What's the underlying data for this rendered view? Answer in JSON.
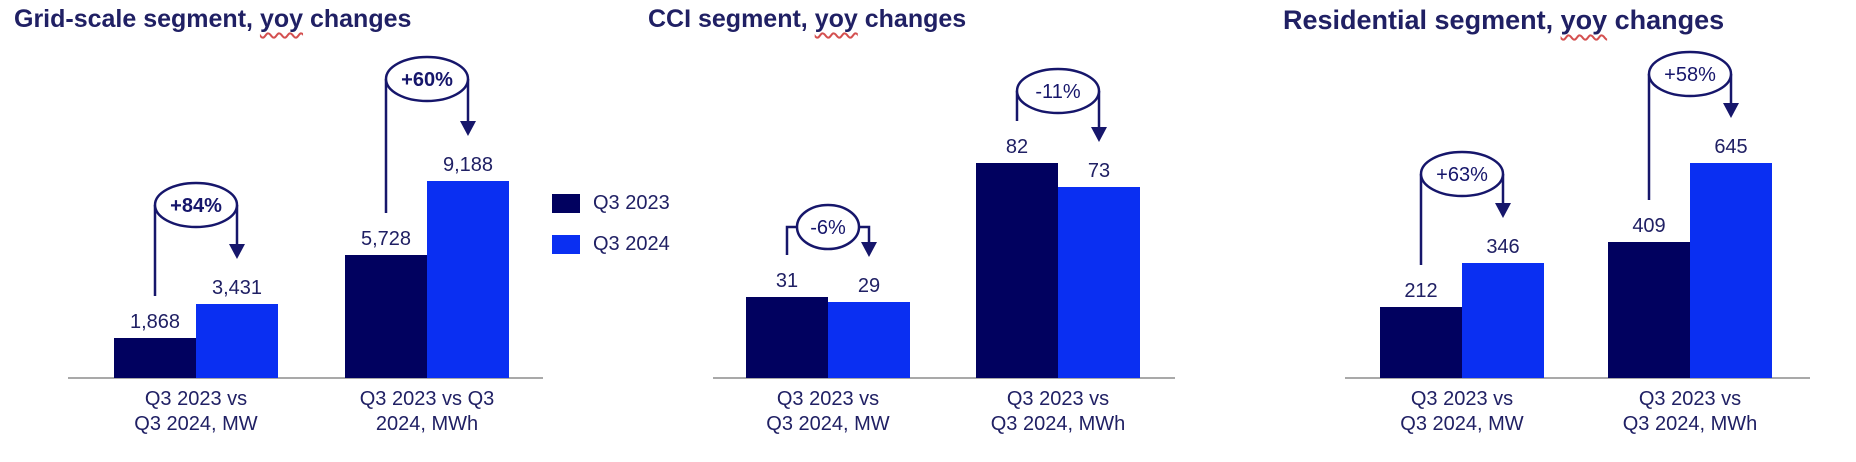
{
  "colors": {
    "series_q3_2023": "#01015f",
    "series_q3_2024": "#0a2ff2",
    "text_navy": "#202064",
    "annotation_navy": "#16166b",
    "axis_gray": "#a9a9a9",
    "spellcheck_red": "#d45050",
    "background": "#ffffff"
  },
  "legend": {
    "items": [
      {
        "label": "Q3 2023",
        "color": "#01015f"
      },
      {
        "label": "Q3 2024",
        "color": "#0a2ff2"
      }
    ]
  },
  "chart_data": [
    {
      "type": "bar",
      "title": "Grid-scale segment, yoy changes",
      "title_parts": {
        "pre": "Grid-scale segment, ",
        "spellchecked_word": "yoy",
        "post": " changes"
      },
      "series_names": [
        "Q3 2023",
        "Q3 2024"
      ],
      "groups": [
        {
          "category": "Q3 2023 vs Q3 2024, MW",
          "category_lines": [
            "Q3 2023 vs",
            "Q3 2024, MW"
          ],
          "values": {
            "q3_2023": 1868,
            "q3_2024": 3431
          },
          "value_labels": [
            "1,868",
            "3,431"
          ],
          "pct_change": "+84%",
          "pct_bold": true
        },
        {
          "category": "Q3 2023 vs Q3 2024, MWh",
          "category_lines": [
            "Q3 2023 vs Q3",
            "2024, MWh"
          ],
          "values": {
            "q3_2023": 5728,
            "q3_2024": 9188
          },
          "value_labels": [
            "5,728",
            "9,188"
          ],
          "pct_change": "+60%",
          "pct_bold": true
        }
      ]
    },
    {
      "type": "bar",
      "title": "CCI segment, yoy changes",
      "title_parts": {
        "pre": "CCI segment, ",
        "spellchecked_word": "yoy",
        "post": " changes"
      },
      "series_names": [
        "Q3 2023",
        "Q3 2024"
      ],
      "groups": [
        {
          "category": "Q3 2023 vs Q3 2024, MW",
          "category_lines": [
            "Q3 2023 vs",
            "Q3 2024, MW"
          ],
          "values": {
            "q3_2023": 31,
            "q3_2024": 29
          },
          "value_labels": [
            "31",
            "29"
          ],
          "pct_change": "-6%",
          "pct_bold": false
        },
        {
          "category": "Q3 2023 vs Q3 2024, MWh",
          "category_lines": [
            "Q3 2023 vs",
            "Q3 2024, MWh"
          ],
          "values": {
            "q3_2023": 82,
            "q3_2024": 73
          },
          "value_labels": [
            "82",
            "73"
          ],
          "pct_change": "-11%",
          "pct_bold": false
        }
      ]
    },
    {
      "type": "bar",
      "title": "Residential segment, yoy changes",
      "title_parts": {
        "pre": "Residential segment, ",
        "spellchecked_word": "yoy",
        "post": " changes"
      },
      "series_names": [
        "Q3 2023",
        "Q3 2024"
      ],
      "groups": [
        {
          "category": "Q3 2023 vs Q3 2024, MW",
          "category_lines": [
            "Q3 2023 vs",
            "Q3 2024, MW"
          ],
          "values": {
            "q3_2023": 212,
            "q3_2024": 346
          },
          "value_labels": [
            "212",
            "346"
          ],
          "pct_change": "+63%",
          "pct_bold": false
        },
        {
          "category": "Q3 2023 vs Q3 2024, MWh",
          "category_lines": [
            "Q3 2023 vs",
            "Q3 2024, MWh"
          ],
          "values": {
            "q3_2023": 409,
            "q3_2024": 645
          },
          "value_labels": [
            "409",
            "645"
          ],
          "pct_change": "+58%",
          "pct_bold": false
        }
      ]
    }
  ]
}
